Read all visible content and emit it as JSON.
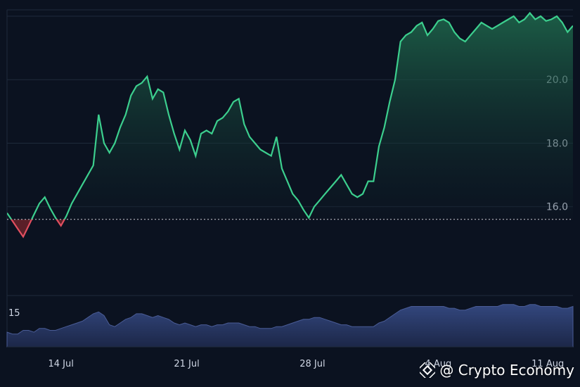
{
  "chart_data": {
    "type": "area",
    "x_tick_labels": [
      "14 Jul",
      "21 Jul",
      "28 Jul",
      "4 Aug",
      "11 Aug"
    ],
    "x_tick_positions_days": [
      3,
      10,
      17,
      24,
      31
    ],
    "y_tick_labels": [
      "16.0",
      "18.0",
      "20.0"
    ],
    "y_ticks": [
      16,
      18,
      20
    ],
    "ylim": [
      13.2,
      22.2
    ],
    "baseline": 15.6,
    "volume_label": "15",
    "series": [
      {
        "x_days": [
          0,
          0.3,
          0.6,
          0.9,
          1.2,
          1.5,
          1.8,
          2.1,
          2.4,
          2.7,
          3.0,
          3.3,
          3.6,
          3.9,
          4.2,
          4.5,
          4.8,
          5.1,
          5.4,
          5.7,
          6.0,
          6.3,
          6.6,
          6.9,
          7.2,
          7.5,
          7.8,
          8.1,
          8.4,
          8.7,
          9.0,
          9.3,
          9.6,
          9.9,
          10.2,
          10.5,
          10.8,
          11.1,
          11.4,
          11.7,
          12.0,
          12.3,
          12.6,
          12.9,
          13.2,
          13.5,
          13.8,
          14.1,
          14.4,
          14.7,
          15.0,
          15.3,
          15.6,
          15.9,
          16.2,
          16.5,
          16.8,
          17.1,
          17.4,
          17.7,
          18.0,
          18.3,
          18.6,
          18.9,
          19.2,
          19.5,
          19.8,
          20.1,
          20.4,
          20.7,
          21.0,
          21.3,
          21.6,
          21.9,
          22.2,
          22.5,
          22.8,
          23.1,
          23.4,
          23.7,
          24.0,
          24.3,
          24.6,
          24.9,
          25.2,
          25.5,
          25.8,
          26.1,
          26.4,
          26.7,
          27.0,
          27.3,
          27.6,
          27.9,
          28.2,
          28.5,
          28.8,
          29.1,
          29.4,
          29.7,
          30.0,
          30.3,
          30.6,
          30.9,
          31.2,
          31.5
        ],
        "values": [
          15.8,
          15.55,
          15.3,
          15.05,
          15.4,
          15.75,
          16.1,
          16.3,
          15.95,
          15.65,
          15.4,
          15.7,
          16.1,
          16.4,
          16.7,
          17.0,
          17.3,
          18.9,
          18.0,
          17.7,
          18.0,
          18.5,
          18.9,
          19.5,
          19.8,
          19.9,
          20.1,
          19.4,
          19.7,
          19.6,
          18.9,
          18.3,
          17.8,
          18.4,
          18.1,
          17.6,
          18.3,
          18.4,
          18.3,
          18.7,
          18.8,
          19.0,
          19.3,
          19.4,
          18.6,
          18.2,
          18.0,
          17.8,
          17.7,
          17.6,
          18.2,
          17.2,
          16.8,
          16.4,
          16.2,
          15.9,
          15.65,
          16.0,
          16.2,
          16.4,
          16.6,
          16.8,
          17.0,
          16.7,
          16.4,
          16.3,
          16.4,
          16.8,
          16.8,
          17.9,
          18.5,
          19.3,
          20.0,
          21.2,
          21.4,
          21.5,
          21.7,
          21.8,
          21.4,
          21.6,
          21.85,
          21.9,
          21.8,
          21.5,
          21.3,
          21.2,
          21.4,
          21.6,
          21.8,
          21.7,
          21.6,
          21.7,
          21.8,
          21.9,
          22.0,
          21.8,
          21.9,
          22.1,
          21.9,
          22.0,
          21.85,
          21.9,
          22.0,
          21.8,
          21.5,
          21.7
        ]
      }
    ],
    "volume_values": [
      8,
      7,
      7,
      9,
      9,
      8,
      10,
      10,
      9,
      9,
      10,
      11,
      12,
      13,
      14,
      16,
      18,
      19,
      17,
      12,
      11,
      13,
      15,
      16,
      18,
      18,
      17,
      16,
      17,
      16,
      15,
      13,
      12,
      13,
      12,
      11,
      12,
      12,
      11,
      12,
      12,
      13,
      13,
      13,
      12,
      11,
      11,
      10,
      10,
      10,
      11,
      11,
      12,
      13,
      14,
      15,
      15,
      16,
      16,
      15,
      14,
      13,
      12,
      12,
      11,
      11,
      11,
      11,
      11,
      13,
      14,
      16,
      18,
      20,
      21,
      22,
      22,
      22,
      22,
      22,
      22,
      22,
      21,
      21,
      20,
      20,
      21,
      22,
      22,
      22,
      22,
      22,
      23,
      23,
      23,
      22,
      22,
      23,
      23,
      22,
      22,
      22,
      22,
      21,
      21,
      22
    ],
    "colors": {
      "up_line": "#3ccf8e",
      "down_line": "#e04f5f",
      "up_fill_top": "#1f6a4d",
      "down_fill": "#5b1f28",
      "volume_fill": "#2a3a6a",
      "grid": "#1f2a3b",
      "background": "#0b1220"
    }
  },
  "watermark": {
    "text": "@ Crypto Economy",
    "icon": "binance-diamond-icon"
  }
}
